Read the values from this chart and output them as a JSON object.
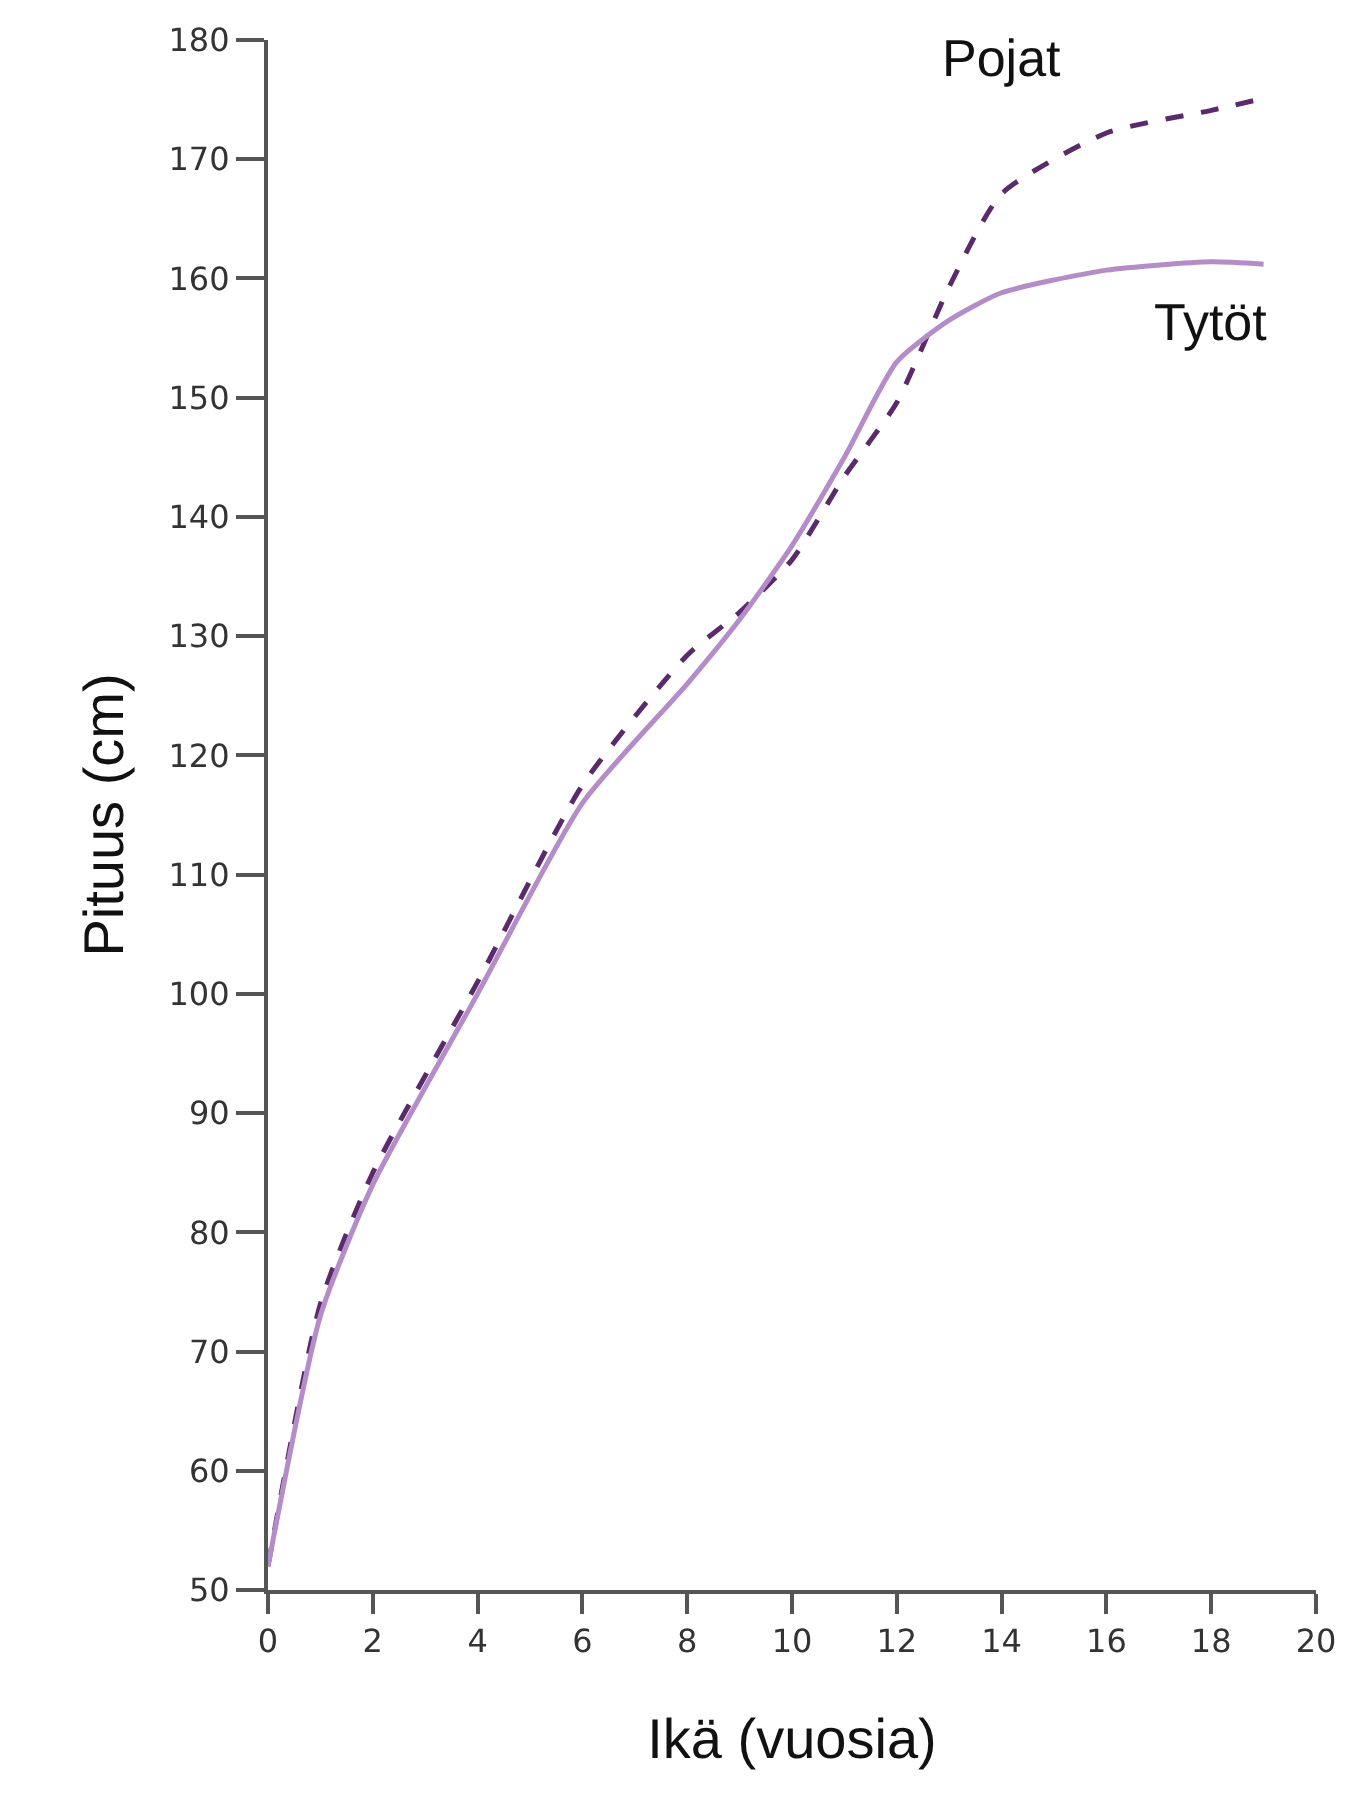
{
  "chart_data": {
    "type": "line",
    "xlabel": "Ikä (vuosia)",
    "ylabel": "Pituus (cm)",
    "x": [
      0,
      1,
      2,
      4,
      6,
      8,
      9,
      10,
      11,
      12,
      13,
      14,
      16,
      18,
      19
    ],
    "xlim": [
      0,
      20
    ],
    "xticks": [
      0,
      2,
      4,
      6,
      8,
      10,
      12,
      14,
      16,
      18,
      20
    ],
    "ylim": [
      50,
      180
    ],
    "yticks": [
      50,
      60,
      70,
      80,
      90,
      100,
      110,
      120,
      130,
      140,
      150,
      160,
      170,
      180
    ],
    "grid": false,
    "legend": false,
    "marker": "none",
    "series": [
      {
        "name": "Pojat",
        "color": "#5a2a6a",
        "line_style": "dashed",
        "values": [
          52,
          74,
          85,
          101,
          117.5,
          128.4,
          132,
          136.4,
          143.4,
          149.6,
          159.3,
          167.1,
          172.2,
          174.1,
          175.1
        ]
      },
      {
        "name": "Tytöt",
        "color": "#b48cc8",
        "line_style": "solid",
        "values": [
          52,
          73,
          84,
          100,
          116,
          126,
          131.4,
          137.6,
          145,
          153,
          156.5,
          158.8,
          160.7,
          161.4,
          161.2
        ]
      }
    ]
  }
}
